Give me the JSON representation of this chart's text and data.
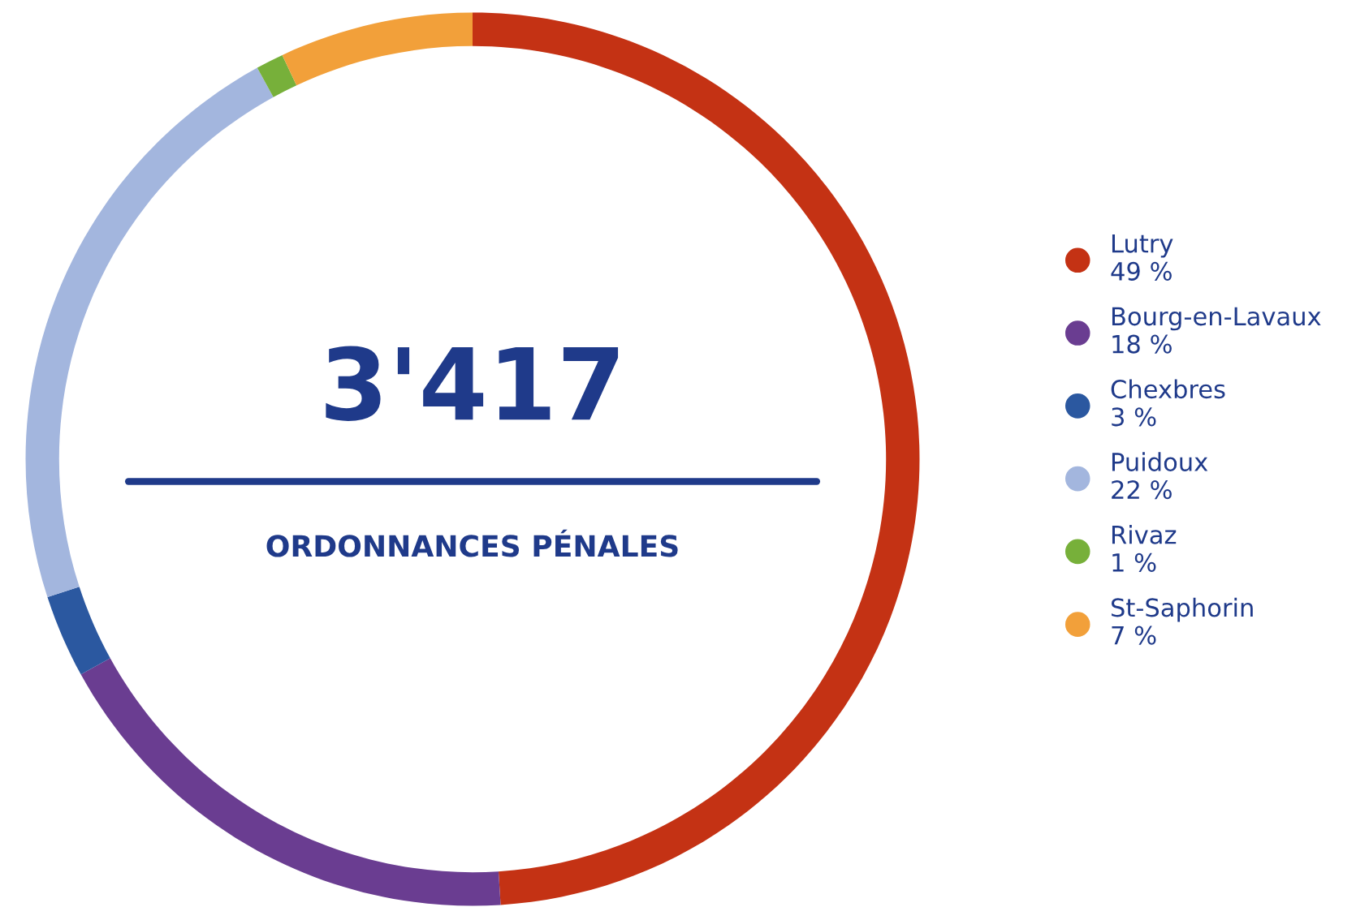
{
  "chart_data": {
    "type": "donut",
    "title": "3'417",
    "subtitle": "ORDONNANCES PÉNALES",
    "categories": [
      "Lutry",
      "Bourg-en-Lavaux",
      "Chexbres",
      "Puidoux",
      "Rivaz",
      "St-Saphorin"
    ],
    "values": [
      49,
      18,
      3,
      22,
      1,
      7
    ],
    "value_labels": [
      "49 %",
      "18 %",
      "3 %",
      "22 %",
      "1 %",
      "7 %"
    ],
    "colors": [
      "#c43214",
      "#6a3d91",
      "#2b58a0",
      "#a3b6de",
      "#77b03a",
      "#f2a03a"
    ],
    "legend": "right"
  }
}
